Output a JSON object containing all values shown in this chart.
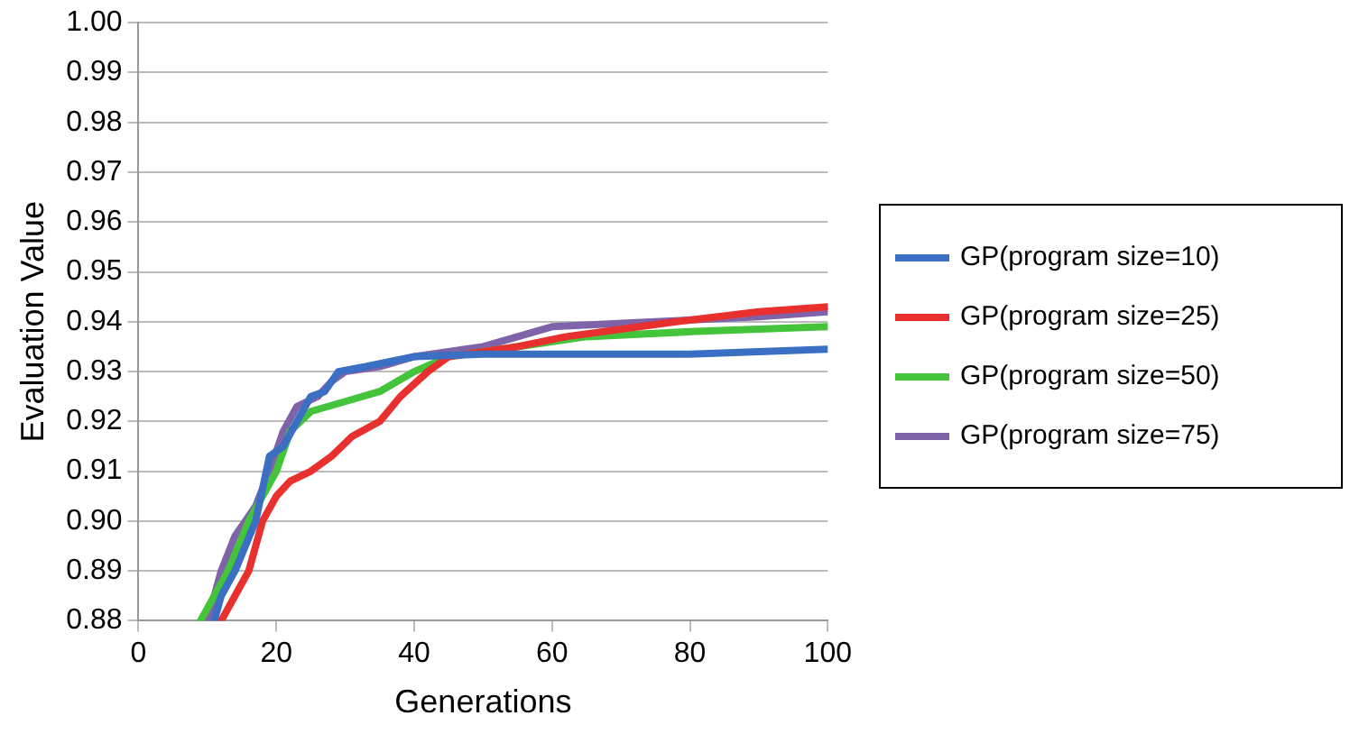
{
  "chart_data": {
    "type": "line",
    "xlabel": "Generations",
    "ylabel": "Evaluation Value",
    "xlim": [
      0,
      100
    ],
    "xticks": [
      0,
      20,
      40,
      60,
      80,
      100
    ],
    "ylim": [
      0.88,
      1.0
    ],
    "yticks": [
      {
        "value": 0.88,
        "label": "0.88"
      },
      {
        "value": 0.89,
        "label": "0.89"
      },
      {
        "value": 0.9,
        "label": "0.90"
      },
      {
        "value": 0.91,
        "label": "0.91"
      },
      {
        "value": 0.92,
        "label": "0.92"
      },
      {
        "value": 0.93,
        "label": "0.93"
      },
      {
        "value": 0.94,
        "label": "0.94"
      },
      {
        "value": 0.95,
        "label": "0.95"
      },
      {
        "value": 0.96,
        "label": "0.96"
      },
      {
        "value": 0.97,
        "label": "0.97"
      },
      {
        "value": 0.98,
        "label": "0.98"
      },
      {
        "value": 0.99,
        "label": "0.99"
      },
      {
        "value": 1.0,
        "label": "1.00"
      }
    ],
    "grid": "y",
    "legend": "right",
    "marker": "none",
    "line_style": "solid",
    "series": [
      {
        "name": "GP(program size=10)",
        "color": "#3a6fc4",
        "x": [
          11,
          12,
          14,
          17,
          19,
          21,
          23,
          25,
          27,
          29,
          33,
          40,
          50,
          80,
          90,
          100
        ],
        "values": [
          0.88,
          0.885,
          0.89,
          0.9,
          0.913,
          0.915,
          0.92,
          0.925,
          0.926,
          0.93,
          0.931,
          0.933,
          0.9335,
          0.9335,
          0.934,
          0.9345
        ]
      },
      {
        "name": "GP(program size=25)",
        "color": "#e8302e",
        "x": [
          12,
          14,
          16,
          18,
          20,
          22,
          25,
          28,
          31,
          35,
          38,
          42,
          45,
          55,
          62,
          78,
          90,
          100
        ],
        "values": [
          0.88,
          0.885,
          0.89,
          0.9,
          0.905,
          0.908,
          0.91,
          0.913,
          0.917,
          0.92,
          0.925,
          0.93,
          0.933,
          0.935,
          0.937,
          0.94,
          0.942,
          0.943
        ]
      },
      {
        "name": "GP(program size=50)",
        "color": "#44c43a",
        "x": [
          9,
          11,
          13,
          16,
          20,
          22,
          25,
          30,
          35,
          40,
          45,
          55,
          65,
          80,
          100
        ],
        "values": [
          0.88,
          0.885,
          0.89,
          0.9,
          0.91,
          0.918,
          0.922,
          0.924,
          0.926,
          0.93,
          0.933,
          0.935,
          0.937,
          0.938,
          0.939
        ]
      },
      {
        "name": "GP(program size=75)",
        "color": "#7e63a8",
        "x": [
          10,
          12,
          14,
          17,
          19,
          21,
          23,
          26,
          28,
          30,
          35,
          40,
          45,
          50,
          55,
          60,
          75,
          90,
          100
        ],
        "values": [
          0.88,
          0.89,
          0.897,
          0.903,
          0.91,
          0.918,
          0.923,
          0.925,
          0.928,
          0.93,
          0.931,
          0.933,
          0.934,
          0.935,
          0.937,
          0.939,
          0.94,
          0.941,
          0.942
        ]
      }
    ]
  }
}
